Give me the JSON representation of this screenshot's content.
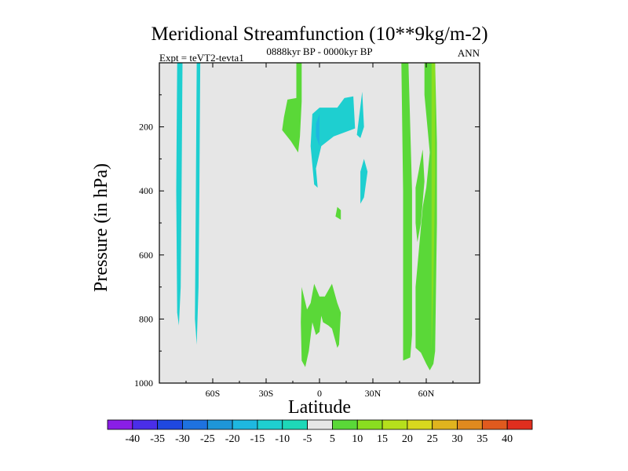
{
  "chart_data": {
    "type": "contour",
    "title": "Meridional Streamfunction (10**9kg/m-2)",
    "left_string": "Expt = teVT2-tevta1",
    "center_string": "0888kyr BP - 0000kyr BP",
    "right_string": "ANN",
    "xlabel": "Latitude",
    "ylabel": "Pressure (in hPa)",
    "xlim": [
      -90,
      90
    ],
    "ylim": [
      0,
      1000
    ],
    "y_reversed": true,
    "x_ticks": [
      {
        "value": -60,
        "label": "60S"
      },
      {
        "value": -30,
        "label": "30S"
      },
      {
        "value": 0,
        "label": "0"
      },
      {
        "value": 30,
        "label": "30N"
      },
      {
        "value": 60,
        "label": "60N"
      }
    ],
    "y_ticks": [
      {
        "value": 200,
        "label": "200"
      },
      {
        "value": 400,
        "label": "400"
      },
      {
        "value": 600,
        "label": "600"
      },
      {
        "value": 800,
        "label": "800"
      },
      {
        "value": 1000,
        "label": "1000"
      }
    ],
    "background_color": "#e6e6e6",
    "colorbar": {
      "labels": [
        "-40",
        "-35",
        "-30",
        "-25",
        "-20",
        "-15",
        "-10",
        "-5",
        "5",
        "10",
        "15",
        "20",
        "25",
        "30",
        "35",
        "40"
      ],
      "colors": [
        "#8a1ee6",
        "#4a2ee8",
        "#1f48e0",
        "#1e72e0",
        "#1e96d8",
        "#1eb8e0",
        "#1ecfd0",
        "#1ed8b8",
        "#e6e6e6",
        "#5ad838",
        "#8ade20",
        "#b6e01c",
        "#d8d81e",
        "#e0b41e",
        "#e08a1e",
        "#e05a1e",
        "#e02e1e"
      ]
    },
    "regions": [
      {
        "level": -10,
        "color": "#1ecfd0",
        "points": [
          [
            -80,
            0
          ],
          [
            -77,
            0
          ],
          [
            -77.5,
            400
          ],
          [
            -78,
            700
          ],
          [
            -79,
            820
          ],
          [
            -80,
            780
          ],
          [
            -80.5,
            400
          ]
        ]
      },
      {
        "level": -10,
        "color": "#1ecfd0",
        "points": [
          [
            -69,
            0
          ],
          [
            -67,
            0
          ],
          [
            -67.5,
            400
          ],
          [
            -68,
            700
          ],
          [
            -69,
            880
          ],
          [
            -70,
            800
          ],
          [
            -69.5,
            400
          ]
        ]
      },
      {
        "level": 5,
        "color": "#5ad838",
        "points": [
          [
            -13,
            0
          ],
          [
            -10,
            0
          ],
          [
            -10,
            120
          ],
          [
            -11,
            230
          ],
          [
            -12,
            280
          ],
          [
            -16,
            245
          ],
          [
            -21,
            210
          ],
          [
            -20,
            170
          ],
          [
            -18,
            115
          ],
          [
            -13,
            110
          ]
        ]
      },
      {
        "level": -10,
        "color": "#1ecfd0",
        "points": [
          [
            -4,
            160
          ],
          [
            0,
            140
          ],
          [
            10,
            140
          ],
          [
            14,
            110
          ],
          [
            19,
            105
          ],
          [
            20,
            205
          ],
          [
            8,
            230
          ],
          [
            1,
            260
          ],
          [
            -2,
            330
          ],
          [
            -1,
            390
          ],
          [
            -3,
            380
          ],
          [
            -5,
            260
          ]
        ]
      },
      {
        "level": -15,
        "color": "#1eb8e0",
        "points": [
          [
            -2,
            190
          ],
          [
            0,
            160
          ],
          [
            0,
            260
          ],
          [
            -2,
            230
          ]
        ]
      },
      {
        "level": -10,
        "color": "#1ecfd0",
        "points": [
          [
            24,
            90
          ],
          [
            25,
            200
          ],
          [
            23,
            235
          ],
          [
            21,
            225
          ],
          [
            22,
            180
          ]
        ]
      },
      {
        "level": -10,
        "color": "#1ecfd0",
        "points": [
          [
            25,
            300
          ],
          [
            27,
            340
          ],
          [
            25,
            420
          ],
          [
            23,
            440
          ],
          [
            23,
            340
          ]
        ]
      },
      {
        "level": 5,
        "color": "#5ad838",
        "points": [
          [
            10,
            450
          ],
          [
            12,
            460
          ],
          [
            12,
            490
          ],
          [
            9,
            480
          ]
        ]
      },
      {
        "level": 5,
        "color": "#5ad838",
        "points": [
          [
            -10,
            700
          ],
          [
            -7,
            770
          ],
          [
            -5,
            750
          ],
          [
            -3,
            690
          ],
          [
            0,
            730
          ],
          [
            3,
            730
          ],
          [
            7,
            690
          ],
          [
            10,
            750
          ],
          [
            12,
            780
          ],
          [
            11,
            880
          ],
          [
            10,
            890
          ],
          [
            7,
            830
          ],
          [
            5,
            820
          ],
          [
            2,
            810
          ],
          [
            1,
            790
          ],
          [
            0,
            840
          ],
          [
            -2,
            850
          ],
          [
            -4,
            810
          ],
          [
            -6,
            900
          ],
          [
            -8,
            950
          ],
          [
            -10,
            930
          ],
          [
            -10.5,
            810
          ]
        ]
      },
      {
        "level": 5,
        "color": "#5ad838",
        "points": [
          [
            46,
            0
          ],
          [
            50,
            0
          ],
          [
            52,
            400
          ],
          [
            52,
            850
          ],
          [
            51,
            920
          ],
          [
            47,
            930
          ],
          [
            47,
            400
          ]
        ]
      },
      {
        "level": 5,
        "color": "#5ad838",
        "points": [
          [
            59,
            0
          ],
          [
            65,
            0
          ],
          [
            66,
            250
          ],
          [
            66,
            500
          ],
          [
            65,
            900
          ],
          [
            64,
            940
          ],
          [
            62,
            960
          ],
          [
            60,
            940
          ],
          [
            57,
            905
          ],
          [
            54,
            890
          ],
          [
            54,
            700
          ],
          [
            58,
            450
          ],
          [
            60,
            390
          ],
          [
            62,
            280
          ],
          [
            59,
            100
          ]
        ]
      },
      {
        "level": 5,
        "color": "#5ad838",
        "points": [
          [
            54,
            390
          ],
          [
            58,
            270
          ],
          [
            59,
            370
          ],
          [
            57,
            500
          ],
          [
            55,
            560
          ],
          [
            54,
            500
          ]
        ]
      },
      {
        "level": 5,
        "color": "#5ad838",
        "points": [
          [
            60,
            450
          ],
          [
            62,
            420
          ],
          [
            62,
            700
          ],
          [
            61,
            850
          ],
          [
            60,
            700
          ]
        ]
      },
      {
        "level": 10,
        "color": "#8ade20",
        "points": [
          [
            63,
            0
          ],
          [
            65,
            0
          ],
          [
            65,
            350
          ],
          [
            64,
            700
          ],
          [
            63,
            900
          ],
          [
            63,
            500
          ]
        ]
      }
    ]
  }
}
